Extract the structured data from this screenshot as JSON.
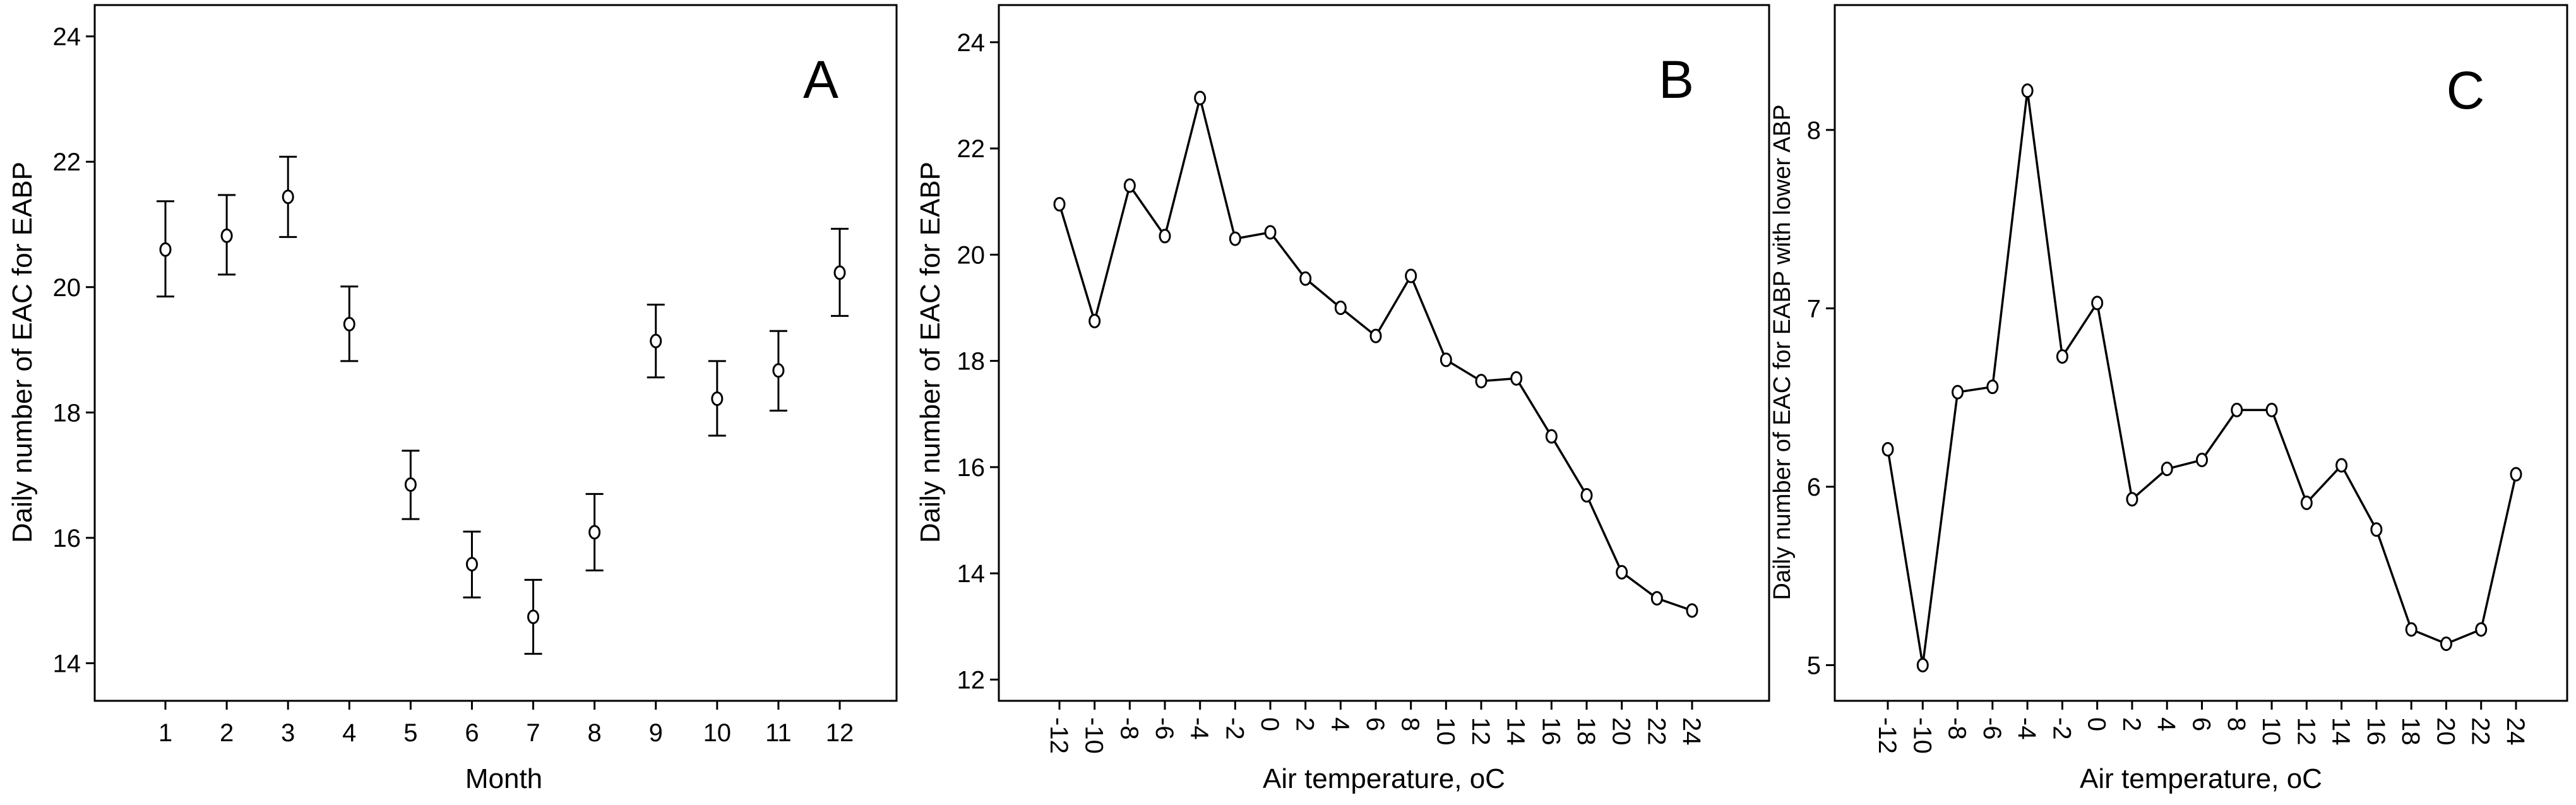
{
  "chart_data": [
    {
      "panel": "A",
      "type": "scatter",
      "subtype": "errorbar",
      "xlabel": "Month",
      "ylabel": "Daily number of EAC for EABP",
      "categories": [
        "1",
        "2",
        "3",
        "4",
        "5",
        "6",
        "7",
        "8",
        "9",
        "10",
        "11",
        "12"
      ],
      "values": [
        20.6,
        20.82,
        21.44,
        19.41,
        16.85,
        15.58,
        14.74,
        16.09,
        19.14,
        18.22,
        18.67,
        20.23
      ],
      "error_low": [
        19.85,
        20.2,
        20.8,
        18.82,
        16.3,
        15.05,
        14.15,
        15.48,
        18.56,
        17.63,
        18.03,
        19.54
      ],
      "error_high": [
        21.37,
        21.47,
        22.08,
        20.01,
        17.39,
        16.1,
        15.33,
        16.7,
        19.72,
        18.82,
        19.3,
        20.93
      ],
      "ylim": [
        13.4,
        24.5
      ],
      "yticks": [
        "14",
        "16",
        "18",
        "20",
        "22",
        "24"
      ],
      "grid": false
    },
    {
      "panel": "B",
      "type": "line",
      "xlabel": "Air temperature, oC",
      "ylabel": "Daily number of EAC for EABP",
      "categories": [
        "-12",
        "-10",
        "-8",
        "-6",
        "-4",
        "-2",
        "0",
        "2",
        "4",
        "6",
        "8",
        "10",
        "12",
        "14",
        "16",
        "18",
        "20",
        "22",
        "24"
      ],
      "values": [
        20.95,
        18.75,
        21.3,
        20.35,
        22.95,
        20.3,
        20.42,
        19.55,
        19.0,
        18.47,
        19.6,
        18.02,
        17.62,
        17.67,
        16.58,
        15.47,
        14.02,
        13.53,
        13.3
      ],
      "ylim": [
        11.6,
        24.7
      ],
      "yticks": [
        "12",
        "14",
        "16",
        "18",
        "20",
        "22",
        "24"
      ],
      "grid": false
    },
    {
      "panel": "C",
      "type": "line",
      "xlabel": "Air temperature, oC",
      "ylabel": "Daily number of EAC for EABP with lower ABP",
      "categories": [
        "-12",
        "-10",
        "-8",
        "-6",
        "-4",
        "-2",
        "0",
        "2",
        "4",
        "6",
        "8",
        "10",
        "12",
        "14",
        "16",
        "18",
        "20",
        "22",
        "24"
      ],
      "values": [
        6.21,
        5.0,
        6.53,
        6.56,
        8.22,
        6.73,
        7.03,
        5.93,
        6.1,
        6.15,
        6.43,
        6.43,
        5.91,
        6.12,
        5.76,
        5.2,
        5.12,
        5.2,
        6.07
      ],
      "ylim": [
        4.8,
        8.7
      ],
      "yticks": [
        "5",
        "6",
        "7",
        "8"
      ],
      "grid": false
    }
  ]
}
